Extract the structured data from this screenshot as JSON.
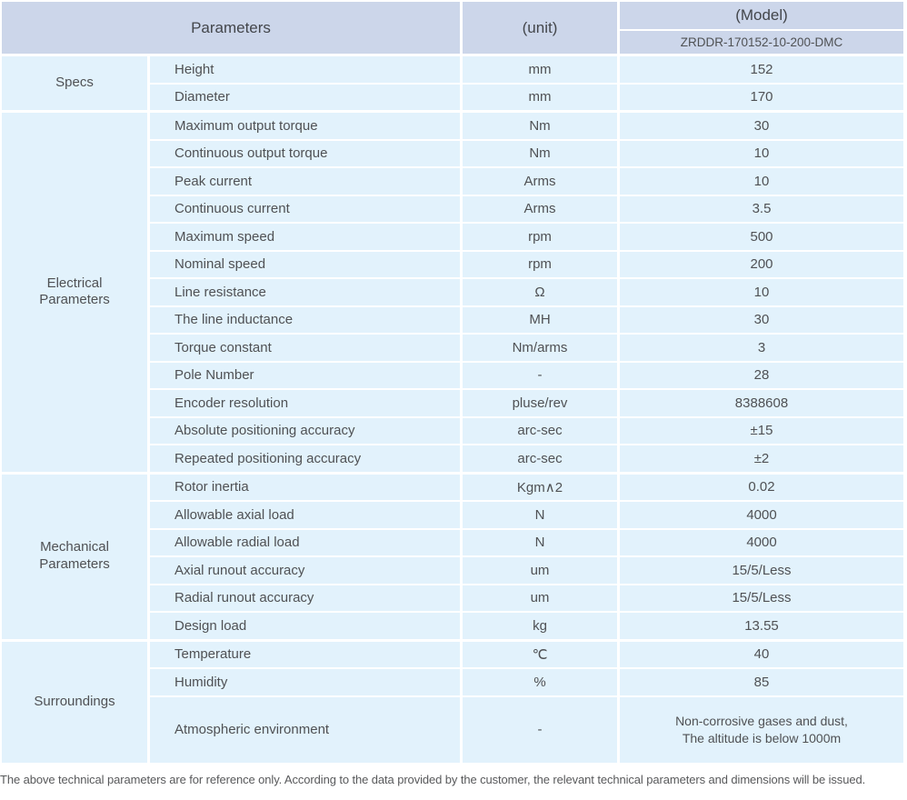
{
  "header": {
    "parameters_label": "Parameters",
    "unit_label": "(unit)",
    "model_label": "(Model)",
    "model_number": "ZRDDR-170152-10-200-DMC"
  },
  "colors": {
    "header_bg": "#ccd6ea",
    "row_bg": "#e2f2fc",
    "text": "#4f5154"
  },
  "sections": [
    {
      "group": "Specs",
      "rows": [
        {
          "param": "Height",
          "unit": "mm",
          "value": "152"
        },
        {
          "param": "Diameter",
          "unit": "mm",
          "value": "170"
        }
      ]
    },
    {
      "group": "Electrical\nParameters",
      "rows": [
        {
          "param": "Maximum output torque",
          "unit": "Nm",
          "value": "30"
        },
        {
          "param": "Continuous output torque",
          "unit": "Nm",
          "value": "10"
        },
        {
          "param": "Peak current",
          "unit": "Arms",
          "value": "10"
        },
        {
          "param": "Continuous current",
          "unit": "Arms",
          "value": "3.5"
        },
        {
          "param": "Maximum speed",
          "unit": "rpm",
          "value": "500"
        },
        {
          "param": "Nominal speed",
          "unit": "rpm",
          "value": "200"
        },
        {
          "param": "Line resistance",
          "unit": "Ω",
          "value": "10"
        },
        {
          "param": "The line inductance",
          "unit": "MH",
          "value": "30"
        },
        {
          "param": "Torque constant",
          "unit": "Nm/arms",
          "value": "3"
        },
        {
          "param": "Pole Number",
          "unit": "-",
          "value": "28"
        },
        {
          "param": "Encoder resolution",
          "unit": "pluse/rev",
          "value": "8388608"
        },
        {
          "param": "Absolute positioning accuracy",
          "unit": "arc-sec",
          "value": "±15"
        },
        {
          "param": "Repeated positioning accuracy",
          "unit": "arc-sec",
          "value": "±2"
        }
      ]
    },
    {
      "group": "Mechanical\nParameters",
      "rows": [
        {
          "param": "Rotor inertia",
          "unit": "Kgm∧2",
          "value": "0.02"
        },
        {
          "param": "Allowable axial load",
          "unit": "N",
          "value": "4000"
        },
        {
          "param": "Allowable radial load",
          "unit": "N",
          "value": "4000"
        },
        {
          "param": "Axial runout accuracy",
          "unit": "um",
          "value": "15/5/Less"
        },
        {
          "param": "Radial runout accuracy",
          "unit": "um",
          "value": "15/5/Less"
        },
        {
          "param": "Design load",
          "unit": "kg",
          "value": "13.55"
        }
      ]
    },
    {
      "group": "Surroundings",
      "rows": [
        {
          "param": "Temperature",
          "unit": "℃",
          "value": "40"
        },
        {
          "param": "Humidity",
          "unit": "%",
          "value": "85"
        },
        {
          "param": "Atmospheric environment",
          "unit": "-",
          "value": [
            "Non-corrosive gases and dust,",
            "The altitude is below 1000m"
          ],
          "tall": true
        }
      ]
    }
  ],
  "footer": {
    "note": "The above technical parameters are for reference only. According to the data provided by the customer, the relevant technical parameters and dimensions will be issued."
  }
}
